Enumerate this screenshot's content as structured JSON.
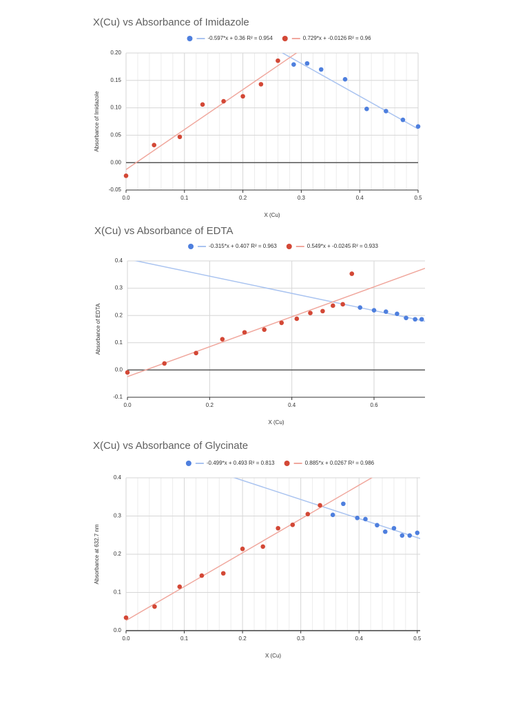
{
  "chart_data": [
    {
      "type": "scatter",
      "title": "X(Cu) vs Absorbance of Imidazole",
      "x_label": "X (Cu)",
      "y_label": "Absorbance of Imidazole",
      "xlim": [
        0,
        0.5
      ],
      "ylim": [
        -0.05,
        0.2
      ],
      "xticks": [
        {
          "value": 0,
          "label": "0.0"
        },
        0.1,
        0.2,
        0.3,
        0.4,
        0.5
      ],
      "yticks": [
        {
          "value": -0.05,
          "label": "-0.05"
        },
        {
          "value": 0,
          "label": "0.00"
        },
        {
          "value": 0.05,
          "label": "0.05"
        },
        {
          "value": 0.1,
          "label": "0.10"
        },
        {
          "value": 0.15,
          "label": "0.15"
        },
        {
          "value": 0.2,
          "label": "0.20"
        }
      ],
      "grid": true,
      "minor_x_divisions": 5,
      "series": [
        {
          "color": "#4e7fde",
          "x": [
            0.287,
            0.31,
            0.334,
            0.375,
            0.412,
            0.445,
            0.474,
            0.5
          ],
          "values": [
            0.179,
            0.181,
            0.17,
            0.152,
            0.098,
            0.094,
            0.078,
            0.066
          ],
          "trendline": {
            "label": "-0.597*x + 0.36 R² = 0.954",
            "slope": -0.597,
            "intercept": 0.36,
            "color": "#a9c3f0"
          }
        },
        {
          "color": "#d34836",
          "x": [
            0,
            0.048,
            0.092,
            0.131,
            0.167,
            0.2,
            0.231,
            0.26
          ],
          "values": [
            -0.024,
            0.032,
            0.047,
            0.106,
            0.112,
            0.121,
            0.143,
            0.186
          ],
          "trendline": {
            "label": "0.729*x + -0.0126 R² = 0.96",
            "slope": 0.729,
            "intercept": -0.0126,
            "color": "#f0a79d"
          }
        }
      ]
    },
    {
      "type": "scatter",
      "title": "X(Cu) vs Absorbance of EDTA",
      "x_label": "X (Cu)",
      "y_label": "Absorbance of EDTA",
      "xlim": [
        0,
        0.724
      ],
      "ylim": [
        -0.1,
        0.4
      ],
      "xticks": [
        {
          "value": 0,
          "label": "0.0"
        },
        0.2,
        0.4,
        0.6
      ],
      "yticks": [
        -0.1,
        {
          "value": 0,
          "label": "0.0"
        },
        0.1,
        0.2,
        0.3,
        0.4
      ],
      "grid": true,
      "minor_x_divisions": 1,
      "series": [
        {
          "color": "#4e7fde",
          "x": [
            0.566,
            0.6,
            0.629,
            0.656,
            0.678,
            0.7,
            0.716
          ],
          "values": [
            0.229,
            0.219,
            0.214,
            0.206,
            0.191,
            0.186,
            0.186
          ],
          "trendline": {
            "label": "-0.315*x + 0.407 R² = 0.963",
            "slope": -0.315,
            "intercept": 0.407,
            "color": "#a9c3f0"
          }
        },
        {
          "color": "#d34836",
          "x": [
            0,
            0.09,
            0.167,
            0.231,
            0.285,
            0.333,
            0.375,
            0.412,
            0.445,
            0.475,
            0.5,
            0.524,
            0.546
          ],
          "values": [
            -0.009,
            0.024,
            0.062,
            0.113,
            0.138,
            0.148,
            0.173,
            0.188,
            0.209,
            0.216,
            0.236,
            0.241,
            0.353
          ],
          "trendline": {
            "label": "0.549*x + -0.0245 R² = 0.933",
            "slope": 0.549,
            "intercept": -0.0245,
            "color": "#f0a79d"
          }
        }
      ]
    },
    {
      "type": "scatter",
      "title": "X(Cu) vs Absorbance of Glycinate",
      "x_label": "X (Cu)",
      "y_label": "Absorbance at 632.7 nm",
      "xlim": [
        0,
        0.505
      ],
      "ylim": [
        0,
        0.4
      ],
      "xticks": [
        {
          "value": 0,
          "label": "0.0"
        },
        0.1,
        0.2,
        0.3,
        0.4,
        0.5
      ],
      "yticks": [
        {
          "value": 0,
          "label": "0.0"
        },
        0.1,
        0.2,
        0.3,
        0.4
      ],
      "grid": true,
      "minor_x_divisions": 5,
      "series": [
        {
          "color": "#4e7fde",
          "x": [
            0.355,
            0.373,
            0.397,
            0.411,
            0.431,
            0.445,
            0.46,
            0.474,
            0.487,
            0.5
          ],
          "values": [
            0.303,
            0.332,
            0.295,
            0.292,
            0.276,
            0.259,
            0.268,
            0.249,
            0.249,
            0.256
          ],
          "trendline": {
            "label": "-0.499*x + 0.493 R² = 0.813",
            "slope": -0.499,
            "intercept": 0.493,
            "color": "#a9c3f0"
          }
        },
        {
          "color": "#d34836",
          "x": [
            0,
            0.049,
            0.092,
            0.13,
            0.167,
            0.2,
            0.235,
            0.261,
            0.286,
            0.312,
            0.333
          ],
          "values": [
            0.034,
            0.063,
            0.115,
            0.144,
            0.15,
            0.214,
            0.22,
            0.268,
            0.277,
            0.305,
            0.328
          ],
          "trendline": {
            "label": "0.885*x + 0.0267 R² = 0.986",
            "slope": 0.885,
            "intercept": 0.0267,
            "color": "#f0a79d"
          }
        }
      ]
    }
  ]
}
